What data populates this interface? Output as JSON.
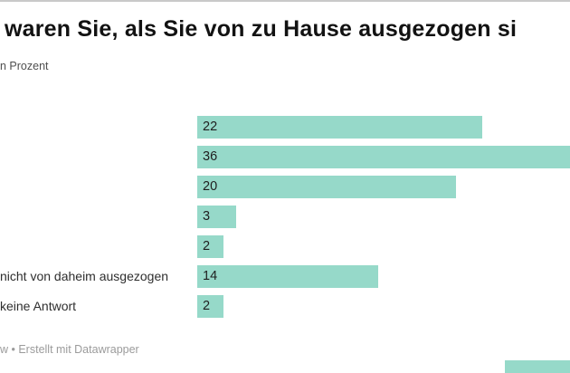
{
  "chart": {
    "title": "waren Sie, als Sie von zu Hause ausgezogen si",
    "subtitle": "n Prozent",
    "footer": "w • Erstellt mit Datawrapper"
  },
  "colors": {
    "bar": "#96d9c9",
    "title_text": "#121212",
    "subtitle_text": "#4f4f4f",
    "value_text": "#1f1f1f",
    "footer_text": "#9b9b9b"
  },
  "chart_data": {
    "type": "bar",
    "orientation": "horizontal",
    "title": "waren Sie, als Sie von zu Hause ausgezogen si",
    "subtitle": "n Prozent",
    "unit": "Prozent",
    "categories": [
      "",
      "",
      "",
      "",
      "",
      "nicht von daheim ausgezogen",
      "keine Antwort"
    ],
    "values": [
      22,
      36,
      20,
      3,
      2,
      14,
      2
    ],
    "value_labels": [
      "22",
      "36",
      "20",
      "3",
      "2",
      "14",
      "2"
    ],
    "xlim": [
      0,
      36
    ],
    "grid": false,
    "legend": false,
    "footer": "w • Erstellt mit Datawrapper"
  }
}
